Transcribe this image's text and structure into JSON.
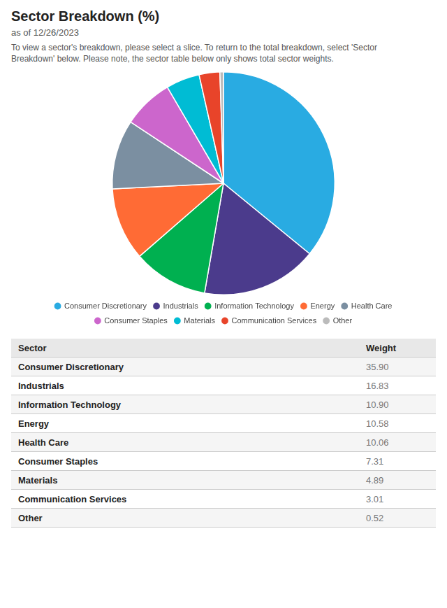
{
  "chart_data": {
    "type": "pie",
    "title": "Sector Breakdown (%)",
    "subtitle": "as of 12/26/2023",
    "description": "To view a sector's breakdown, please select a slice. To return to the total breakdown, select 'Sector\nBreakdown' below. Please note, the sector table below only shows total sector weights.",
    "categories": [
      "Consumer Discretionary",
      "Industrials",
      "Information Technology",
      "Energy",
      "Health Care",
      "Consumer Staples",
      "Materials",
      "Communication Services",
      "Other"
    ],
    "values": [
      35.9,
      16.83,
      10.9,
      10.58,
      10.06,
      7.31,
      4.89,
      3.01,
      0.52
    ],
    "value_labels": [
      "35.90",
      "16.83",
      "10.90",
      "10.58",
      "10.06",
      "7.31",
      "4.89",
      "3.01",
      "0.52"
    ],
    "colors": [
      "#29ABE2",
      "#4B3B8C",
      "#00B050",
      "#FF6B35",
      "#7B8FA1",
      "#CC66CC",
      "#00BCD4",
      "#E8442A",
      "#BBBBBB"
    ],
    "legend": "bottom",
    "table_columns": [
      "Sector",
      "Weight"
    ]
  }
}
